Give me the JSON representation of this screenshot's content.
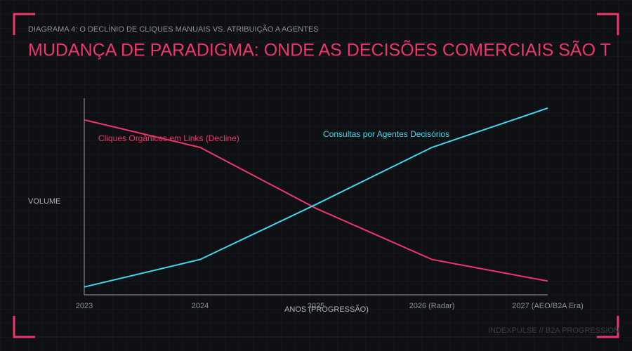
{
  "chart_data": {
    "type": "line",
    "subtitle": "DIAGRAMA 4: O DECLÍNIO DE CLIQUES MANUAIS VS. ATRIBUIÇÃO A AGENTES",
    "title": "MUDANÇA DE PARADIGMA: ONDE AS DECISÕES COMERCIAIS SÃO T",
    "y_label": "VOLUME",
    "x_label": "ANOS (PROGRESSÃO)",
    "footer": "INDEXPULSE // B2A PROGRESSION",
    "categories": [
      "2023",
      "2024",
      "2025",
      "2026 (Radar)",
      "2027 (AEO/B2A Era)"
    ],
    "ylim": [
      0,
      100
    ],
    "series": [
      {
        "name": "Cliques Orgânicos em Links (Decline)",
        "color": "#f0356b",
        "values": [
          89,
          75,
          44,
          18,
          7
        ]
      },
      {
        "name": "Consultas por Agentes Decisórios",
        "color": "#3fd8ec",
        "values": [
          4,
          18,
          46,
          75,
          95
        ]
      }
    ]
  }
}
